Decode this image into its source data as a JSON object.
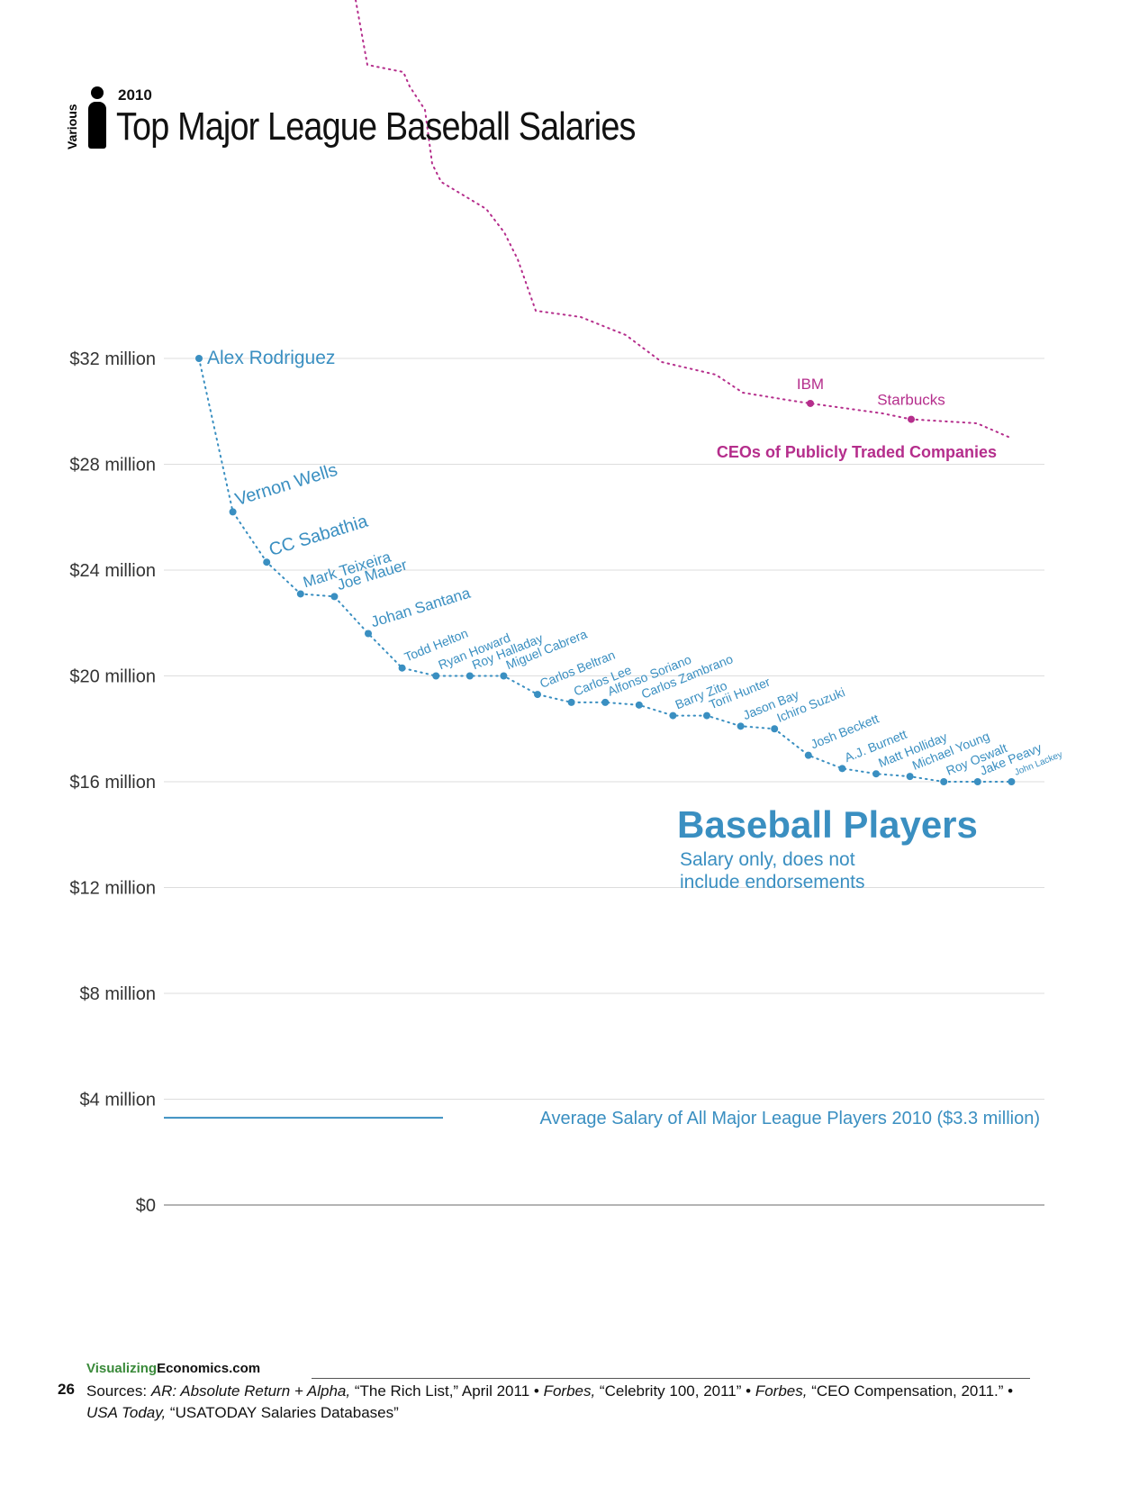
{
  "header": {
    "year": "2010",
    "side_label": "Various",
    "title": "Top Major League Baseball Salaries"
  },
  "colors": {
    "players": "#3a8fc1",
    "ceos": "#b52e8c",
    "grid": "#dddddd",
    "axis_text": "#333333"
  },
  "chart_data": {
    "type": "line",
    "ylim": [
      0,
      32
    ],
    "y_ticks": [
      {
        "value": 32,
        "label": "$32 million"
      },
      {
        "value": 28,
        "label": "$28 million"
      },
      {
        "value": 24,
        "label": "$24 million"
      },
      {
        "value": 20,
        "label": "$20 million"
      },
      {
        "value": 16,
        "label": "$16 million"
      },
      {
        "value": 12,
        "label": "$12 million"
      },
      {
        "value": 8,
        "label": "$8 million"
      },
      {
        "value": 4,
        "label": "$4 million"
      },
      {
        "value": 0,
        "label": "$0"
      }
    ],
    "grid": true,
    "series": [
      {
        "name": "Baseball Players",
        "subtitle": "Salary only, does not include endorsements",
        "points": [
          {
            "label": "Alex Rodriguez",
            "value": 32.0
          },
          {
            "label": "Vernon Wells",
            "value": 26.2
          },
          {
            "label": "CC Sabathia",
            "value": 24.3
          },
          {
            "label": "Mark Teixeira",
            "value": 23.1
          },
          {
            "label": "Joe Mauer",
            "value": 23.0
          },
          {
            "label": "Johan Santana",
            "value": 21.6
          },
          {
            "label": "Todd Helton",
            "value": 20.3
          },
          {
            "label": "Ryan Howard",
            "value": 20.0
          },
          {
            "label": "Roy Halladay",
            "value": 20.0
          },
          {
            "label": "Miguel Cabrera",
            "value": 20.0
          },
          {
            "label": "Carlos Beltran",
            "value": 19.3
          },
          {
            "label": "Carlos Lee",
            "value": 19.0
          },
          {
            "label": "Alfonso Soriano",
            "value": 19.0
          },
          {
            "label": "Carlos Zambrano",
            "value": 18.9
          },
          {
            "label": "Barry Zito",
            "value": 18.5
          },
          {
            "label": "Torii Hunter",
            "value": 18.5
          },
          {
            "label": "Jason Bay",
            "value": 18.1
          },
          {
            "label": "Ichiro Suzuki",
            "value": 18.0
          },
          {
            "label": "Josh Beckett",
            "value": 17.0
          },
          {
            "label": "A.J. Burnett",
            "value": 16.5
          },
          {
            "label": "Matt Holliday",
            "value": 16.3
          },
          {
            "label": "Michael Young",
            "value": 16.2
          },
          {
            "label": "Roy Oswalt",
            "value": 16.0
          },
          {
            "label": "Jake Peavy",
            "value": 16.0
          },
          {
            "label": "John Lackey",
            "value": 16.0
          }
        ]
      },
      {
        "name": "CEOs of Publicly Traded Companies",
        "points": [
          {
            "label": "IBM",
            "value": 30.3
          },
          {
            "label": "Starbucks",
            "value": 29.7
          }
        ]
      }
    ],
    "reference_line": {
      "label": "Average Salary of All Major League Players 2010 ($3.3 million)",
      "value": 3.3
    }
  },
  "footer": {
    "site_green": "Visualizing",
    "site_dark": "Economics.com",
    "page_number": "26",
    "sources": [
      {
        "text": "Sources: ",
        "italic": false
      },
      {
        "text": "AR: Absolute Return + Alpha,",
        "italic": true
      },
      {
        "text": " “The Rich List,” April 2011 • ",
        "italic": false
      },
      {
        "text": "Forbes,",
        "italic": true
      },
      {
        "text": " “Celebrity 100, 2011” • ",
        "italic": false
      },
      {
        "text": "Forbes,",
        "italic": true
      },
      {
        "text": " “CEO Compensation, 2011.” • ",
        "italic": false
      },
      {
        "text": "USA Today,",
        "italic": true
      },
      {
        "text": " “USATODAY Salaries Databases”",
        "italic": false
      }
    ]
  }
}
